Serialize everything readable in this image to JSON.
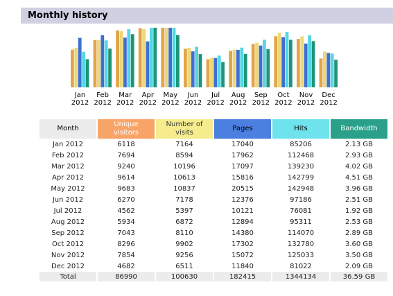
{
  "section": {
    "title": "Monthly history"
  },
  "table": {
    "headers": {
      "month": "Month",
      "unique": "Unique visitors",
      "visits": "Number of visits",
      "pages": "Pages",
      "hits": "Hits",
      "bandwidth": "Bandwidth"
    },
    "rows": [
      [
        "Jan 2012",
        "6118",
        "7164",
        "17040",
        "85206",
        "2.13 GB"
      ],
      [
        "Feb 2012",
        "7694",
        "8594",
        "17962",
        "112468",
        "2.93 GB"
      ],
      [
        "Mar 2012",
        "9240",
        "10196",
        "17097",
        "139230",
        "4.02 GB"
      ],
      [
        "Apr 2012",
        "9614",
        "10613",
        "15816",
        "142799",
        "4.51 GB"
      ],
      [
        "May 2012",
        "9683",
        "10837",
        "20515",
        "142948",
        "3.96 GB"
      ],
      [
        "Jun 2012",
        "6270",
        "7178",
        "12376",
        "97186",
        "2.51 GB"
      ],
      [
        "Jul 2012",
        "4562",
        "5397",
        "10121",
        "76081",
        "1.92 GB"
      ],
      [
        "Aug 2012",
        "5934",
        "6872",
        "12894",
        "95311",
        "2.53 GB"
      ],
      [
        "Sep 2012",
        "7043",
        "8110",
        "14380",
        "114070",
        "2.89 GB"
      ],
      [
        "Oct 2012",
        "8296",
        "9902",
        "17302",
        "132780",
        "3.60 GB"
      ],
      [
        "Nov 2012",
        "7854",
        "9256",
        "15072",
        "125033",
        "3.50 GB"
      ],
      [
        "Dec 2012",
        "4682",
        "6511",
        "11840",
        "81022",
        "2.09 GB"
      ]
    ],
    "total": [
      "Total",
      "86990",
      "100630",
      "182415",
      "1344134",
      "36.59 GB"
    ]
  },
  "chart_data": {
    "type": "bar",
    "categories": [
      [
        "Jan",
        "2012"
      ],
      [
        "Feb",
        "2012"
      ],
      [
        "Mar",
        "2012"
      ],
      [
        "Apr",
        "2012"
      ],
      [
        "May",
        "2012"
      ],
      [
        "Jun",
        "2012"
      ],
      [
        "Jul",
        "2012"
      ],
      [
        "Aug",
        "2012"
      ],
      [
        "Sep",
        "2012"
      ],
      [
        "Oct",
        "2012"
      ],
      [
        "Nov",
        "2012"
      ],
      [
        "Dec",
        "2012"
      ]
    ],
    "series": [
      {
        "key": "unique",
        "values": [
          6118,
          7694,
          9240,
          9614,
          9683,
          6270,
          4562,
          5934,
          7043,
          8296,
          7854,
          4682
        ],
        "color": "#e2a547"
      },
      {
        "key": "visits",
        "values": [
          7164,
          8594,
          10196,
          10613,
          10837,
          7178,
          5397,
          6872,
          8110,
          9902,
          9256,
          6511
        ],
        "color": "#ecd87a"
      },
      {
        "key": "pages",
        "values": [
          17040,
          17962,
          17097,
          15816,
          20515,
          12376,
          10121,
          12894,
          14380,
          17302,
          15072,
          11840
        ],
        "color": "#3f6fd2"
      },
      {
        "key": "hits",
        "values": [
          85206,
          112468,
          139230,
          142799,
          142948,
          97186,
          76081,
          95311,
          114070,
          132780,
          125033,
          81022
        ],
        "color": "#56d6e2"
      },
      {
        "key": "bandwidth",
        "values": [
          2.13,
          2.93,
          4.02,
          4.51,
          3.96,
          2.51,
          1.92,
          2.53,
          2.89,
          3.6,
          3.5,
          2.09
        ],
        "color": "#1f9478"
      }
    ]
  }
}
